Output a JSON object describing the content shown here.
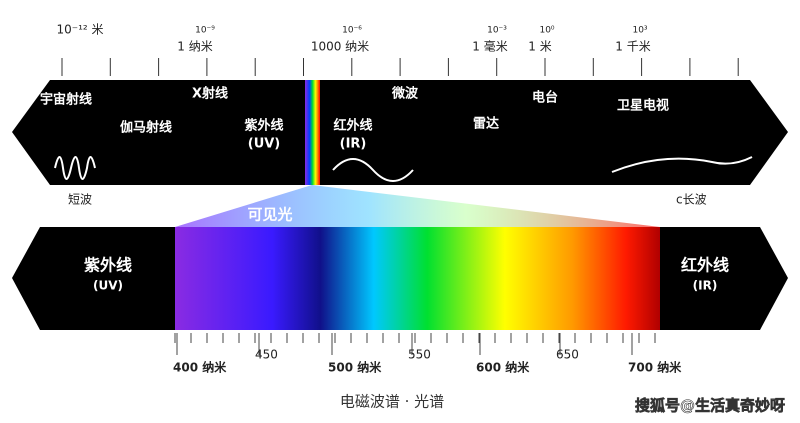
{
  "top_scale": [
    "10⁻¹² 米",
    "10⁻⁹",
    "1 纳米",
    "10⁻⁶",
    "1000 纳米",
    "10⁻³",
    "1 毫米",
    "10⁰",
    "1 米",
    "10³",
    "1 千米"
  ],
  "top_band": {
    "cosmic": "宇宙射线",
    "gamma": "伽马射线",
    "xray": "X射线",
    "uv": "紫外线",
    "uv_abbr": "(UV)",
    "ir": "红外线",
    "ir_abbr": "(IR)",
    "microwave": "微波",
    "radar": "雷达",
    "radio": "电台",
    "satellite_tv": "卫星电视"
  },
  "below_top": {
    "short_wave": "短波",
    "long_wave": "c长波"
  },
  "visible": "可见光",
  "bottom_band": {
    "uv": "紫外线",
    "uv_abbr": "(UV)",
    "ir": "红外线",
    "ir_abbr": "(IR)"
  },
  "bottom_scale": [
    "400 纳米",
    "450",
    "500 纳米",
    "550",
    "600 纳米",
    "650",
    "700 纳米"
  ],
  "caption": "电磁波谱 · 光谱",
  "watermark": "搜狐号@生活真奇妙呀"
}
